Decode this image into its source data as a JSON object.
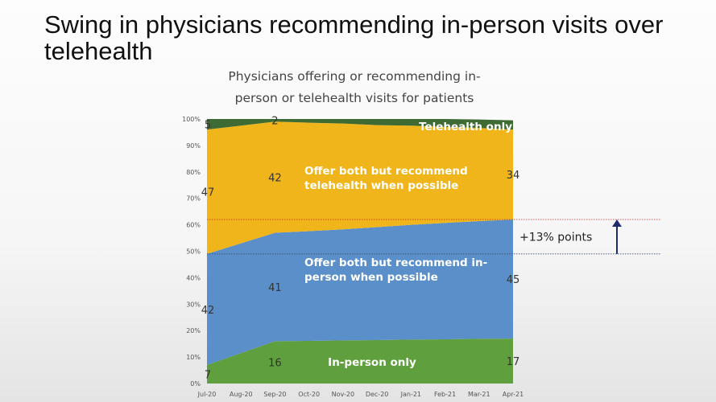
{
  "slide": {
    "title": "Swing in physicians recommending in-person visits over telehealth"
  },
  "chart_data": {
    "type": "area",
    "stacked": true,
    "title_lines": [
      "Physicians offering or recommending in-",
      "person or telehealth visits for patients"
    ],
    "categories": [
      "Jul-20",
      "Aug-20",
      "Sep-20",
      "Oct-20",
      "Nov-20",
      "Dec-20",
      "Jan-21",
      "Feb-21",
      "Mar-21",
      "Apr-21"
    ],
    "series": [
      {
        "name": "In-person only",
        "color": "#5f9f3d",
        "values": [
          7,
          11.5,
          16,
          16.1,
          16.3,
          16.4,
          16.6,
          16.7,
          16.9,
          17
        ]
      },
      {
        "name": "Offer both but recommend in-person when possible",
        "color": "#5b8fc9",
        "values": [
          42,
          41.5,
          41,
          41.5,
          42,
          42.7,
          43.4,
          44,
          44.5,
          45
        ]
      },
      {
        "name": "Offer both but recommend telehealth when possible",
        "color": "#f0b51a",
        "values": [
          47,
          44.5,
          42,
          41,
          40,
          38.6,
          37.5,
          36.3,
          35.2,
          34
        ]
      },
      {
        "name": "Telehealth only",
        "color": "#3e6b33",
        "values": [
          5,
          3.5,
          2,
          2.2,
          2.4,
          2.6,
          2.8,
          3,
          3.2,
          3.5
        ]
      }
    ],
    "series_labels": [
      {
        "series": 0,
        "text": "In-person only",
        "lines": [
          "In-person only"
        ]
      },
      {
        "series": 1,
        "text": "Offer both but recommend in-person when possible",
        "lines": [
          "Offer both but recommend in-",
          "person when possible"
        ]
      },
      {
        "series": 2,
        "text": "Offer both but recommend telehealth when possible",
        "lines": [
          "Offer both but recommend",
          "telehealth when possible"
        ]
      },
      {
        "series": 3,
        "text": "Telehealth only",
        "lines": [
          "Telehealth only"
        ]
      }
    ],
    "data_labels": [
      {
        "series": 0,
        "index": 0,
        "text": "7"
      },
      {
        "series": 0,
        "index": 2,
        "text": "16"
      },
      {
        "series": 0,
        "index": 9,
        "text": "17"
      },
      {
        "series": 1,
        "index": 0,
        "text": "42"
      },
      {
        "series": 1,
        "index": 2,
        "text": "41"
      },
      {
        "series": 1,
        "index": 9,
        "text": "45"
      },
      {
        "series": 2,
        "index": 0,
        "text": "47"
      },
      {
        "series": 2,
        "index": 2,
        "text": "42"
      },
      {
        "series": 2,
        "index": 9,
        "text": "34"
      },
      {
        "series": 3,
        "index": 0,
        "text": "5"
      },
      {
        "series": 3,
        "index": 2,
        "text": "2"
      }
    ],
    "y_ticks": [
      "0%",
      "10%",
      "20%",
      "30%",
      "40%",
      "50%",
      "60%",
      "70%",
      "80%",
      "90%",
      "100%"
    ],
    "ylim": [
      0,
      100
    ],
    "grid": false,
    "annotation": {
      "text": "+13% points",
      "from_value": 49,
      "to_value": 62,
      "lower_line_color": "#3a4a7a",
      "upper_line_color": "#c0292b",
      "arrow_color": "#1f2a6b"
    }
  }
}
